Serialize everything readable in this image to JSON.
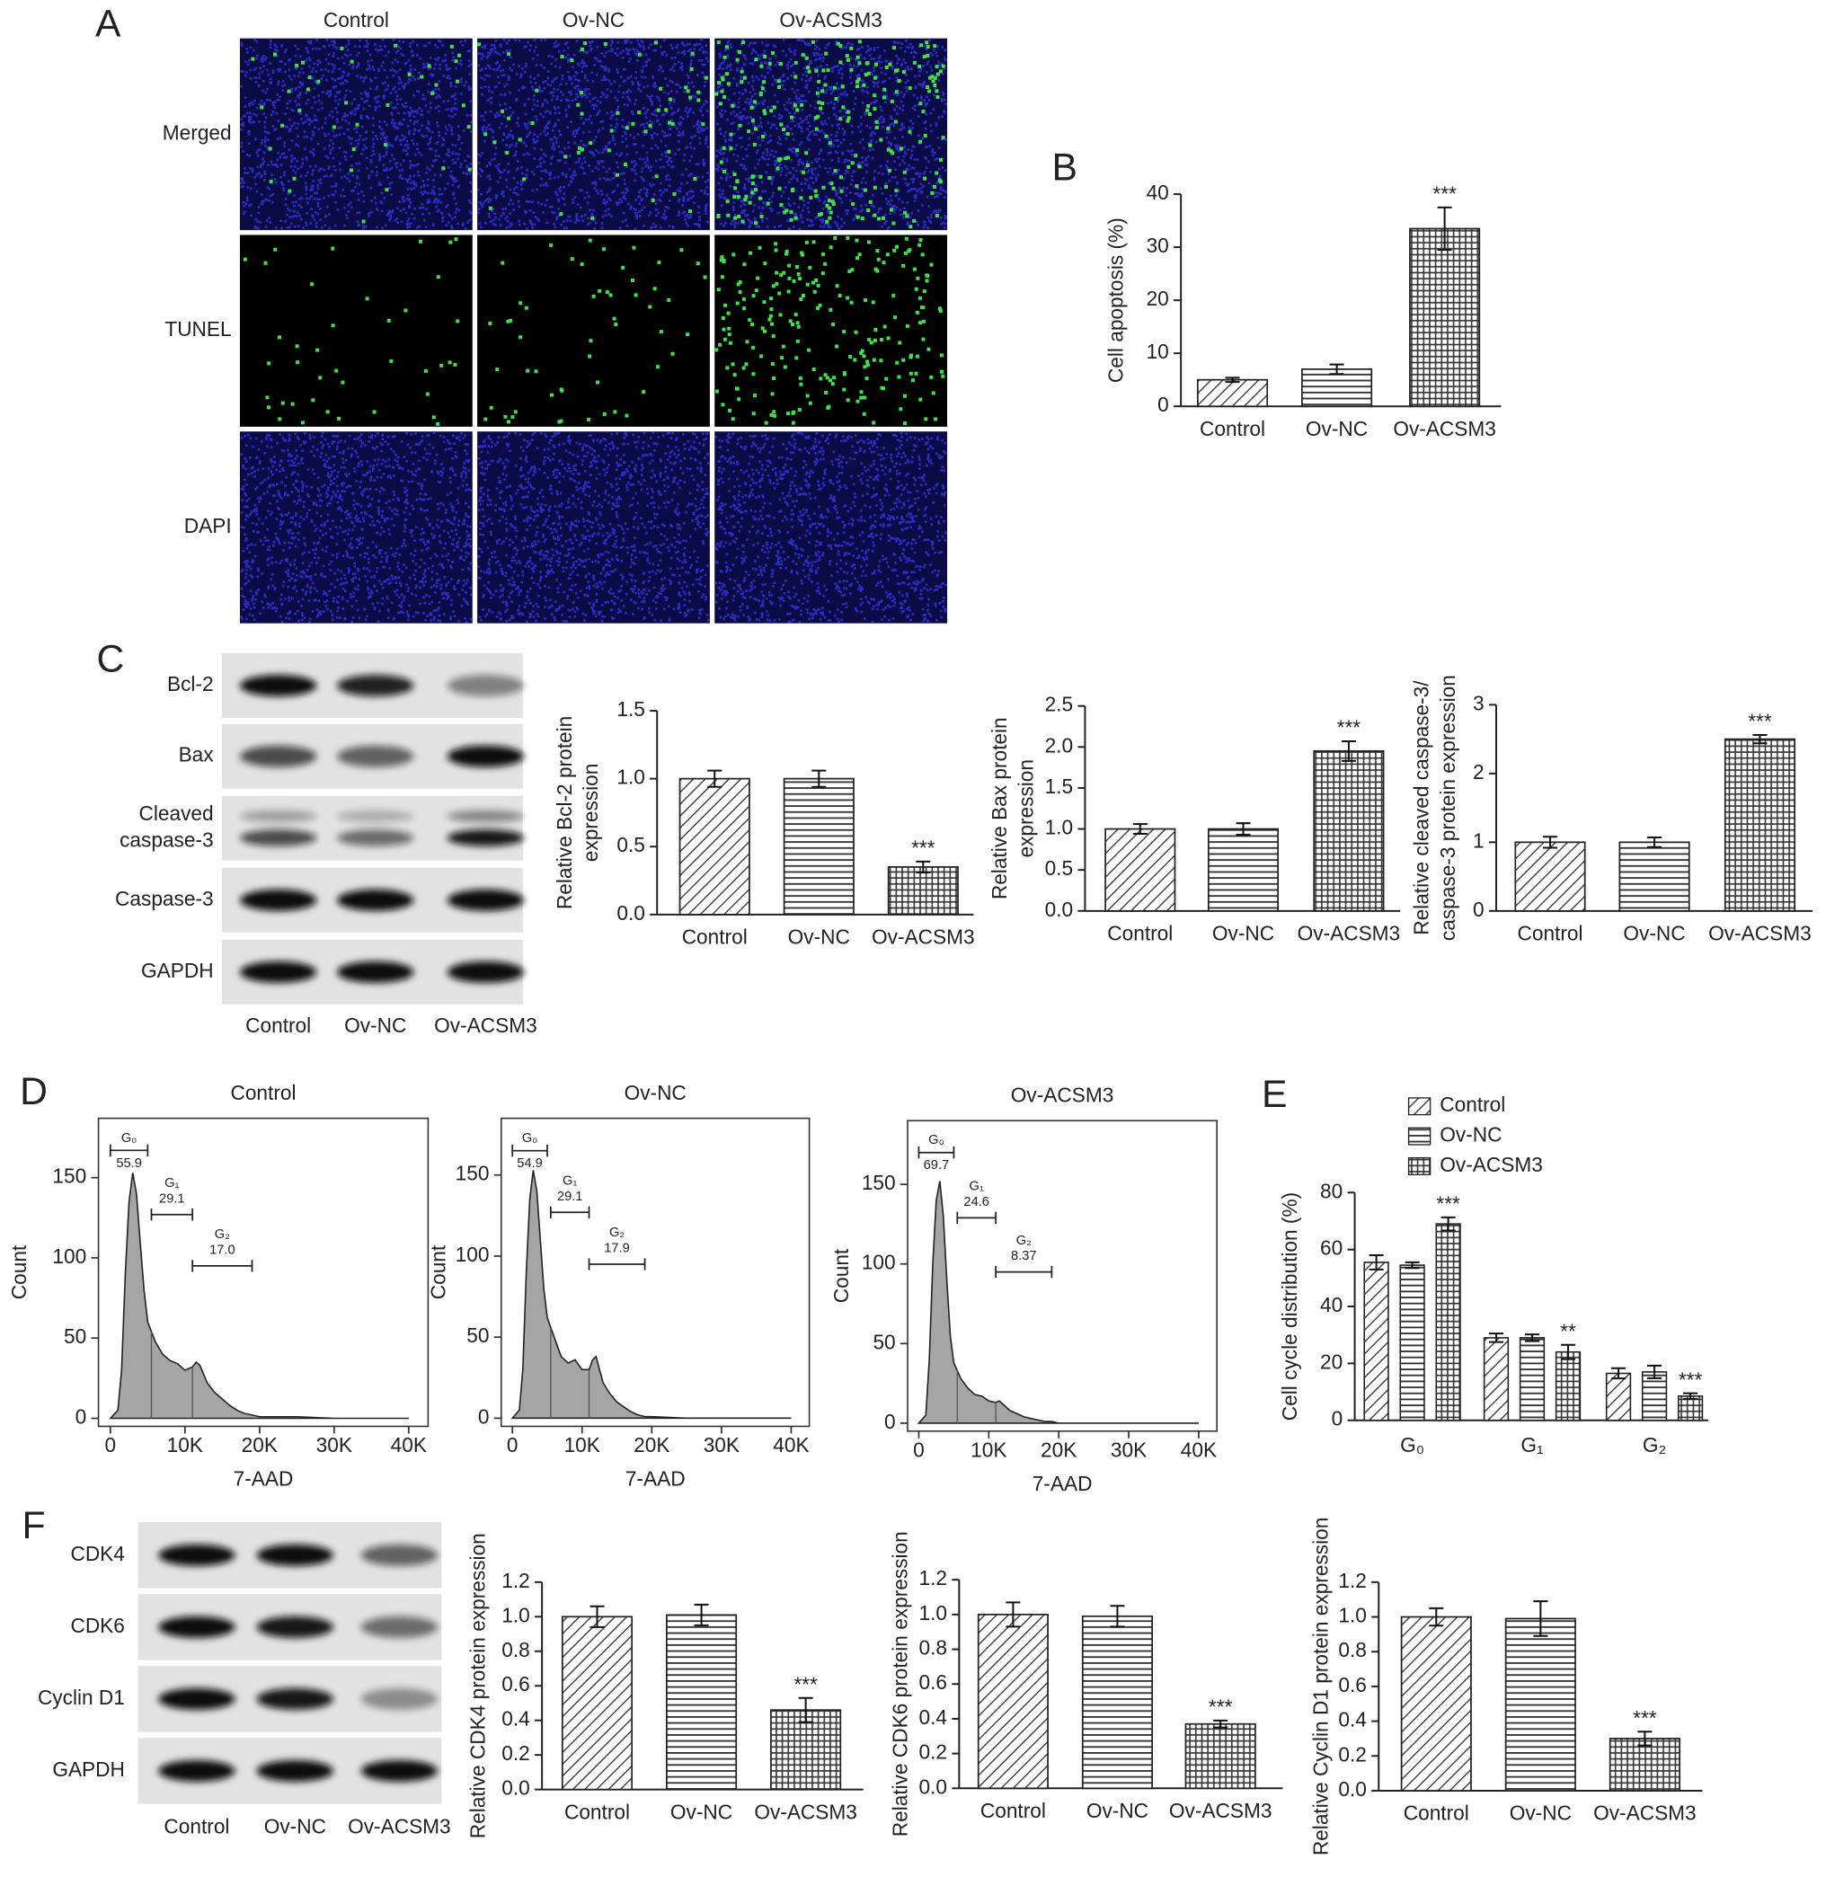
{
  "microscopy": {
    "panel": "A",
    "columns": [
      "Control",
      "Ov-NC",
      "Ov-ACSM3"
    ],
    "rows": [
      "Merged",
      "TUNEL",
      "DAPI"
    ]
  },
  "blots": [
    {
      "panel": "C",
      "bands": [
        "Bcl-2",
        "Bax",
        [
          "Cleaved",
          "caspase-3"
        ],
        "Caspase-3",
        "GAPDH"
      ],
      "lanes": [
        "Control",
        "Ov-NC",
        "Ov-ACSM3"
      ]
    },
    {
      "panel": "F",
      "bands": [
        "CDK4",
        "CDK6",
        "Cyclin D1",
        "GAPDH"
      ],
      "lanes": [
        "Control",
        "Ov-NC",
        "Ov-ACSM3"
      ]
    }
  ],
  "chart_data": [
    {
      "type": "bar",
      "panel": "B",
      "ylabel": [
        "Cell apoptosis (%)"
      ],
      "categories": [
        "Control",
        "Ov-NC",
        "Ov-ACSM3"
      ],
      "values": [
        5,
        7,
        33.5
      ],
      "errors": [
        0.4,
        0.9,
        4
      ],
      "significance": [
        null,
        null,
        "***"
      ],
      "patterns": [
        "diagonal",
        "horizontal",
        "grid"
      ],
      "ylim": [
        0,
        40
      ],
      "yticks": [
        0,
        10,
        20,
        30,
        40
      ]
    },
    {
      "type": "bar",
      "ylabel": [
        "Relative Bcl-2 protein",
        "expression"
      ],
      "categories": [
        "Control",
        "Ov-NC",
        "Ov-ACSM3"
      ],
      "values": [
        1.0,
        1.0,
        0.35
      ],
      "errors": [
        0.06,
        0.06,
        0.04
      ],
      "significance": [
        null,
        null,
        "***"
      ],
      "patterns": [
        "diagonal",
        "horizontal",
        "grid"
      ],
      "ylim": [
        0,
        1.5
      ],
      "yticks": [
        {
          "value": 0,
          "label": "0.0"
        },
        0.5,
        {
          "value": 1,
          "label": "1.0"
        },
        1.5
      ]
    },
    {
      "type": "bar",
      "ylabel": [
        "Relative Bax protein",
        "expression"
      ],
      "categories": [
        "Control",
        "Ov-NC",
        "Ov-ACSM3"
      ],
      "values": [
        1.0,
        1.0,
        1.95
      ],
      "errors": [
        0.06,
        0.07,
        0.12
      ],
      "significance": [
        null,
        null,
        "***"
      ],
      "patterns": [
        "diagonal",
        "horizontal",
        "grid"
      ],
      "ylim": [
        0,
        2.5
      ],
      "yticks": [
        {
          "value": 0,
          "label": "0.0"
        },
        0.5,
        {
          "value": 1,
          "label": "1.0"
        },
        1.5,
        {
          "value": 2,
          "label": "2.0"
        },
        2.5
      ]
    },
    {
      "type": "bar",
      "ylabel": [
        "Relative cleaved caspase-3/",
        "caspase-3 protein expression"
      ],
      "categories": [
        "Control",
        "Ov-NC",
        "Ov-ACSM3"
      ],
      "values": [
        1.0,
        1.0,
        2.5
      ],
      "errors": [
        0.08,
        0.07,
        0.06
      ],
      "significance": [
        null,
        null,
        "***"
      ],
      "patterns": [
        "diagonal",
        "horizontal",
        "grid"
      ],
      "ylim": [
        0,
        3
      ],
      "yticks": [
        0,
        1,
        2,
        3
      ]
    },
    {
      "type": "area",
      "panel": "D",
      "title": "Control",
      "xlabel": "7-AAD",
      "ylabel": [
        "Count"
      ],
      "x": [
        0,
        1000,
        1500,
        2000,
        2500,
        3000,
        3500,
        4000,
        4500,
        5000,
        6000,
        7000,
        8000,
        9000,
        10000,
        11000,
        11500,
        12000,
        13000,
        14000,
        15000,
        16000,
        17000,
        18000,
        19000,
        20000,
        25000,
        30000,
        40000
      ],
      "values": [
        0,
        5,
        30,
        90,
        135,
        153,
        140,
        110,
        80,
        60,
        48,
        40,
        36,
        34,
        30,
        32,
        35,
        33,
        22,
        16,
        12,
        8,
        5,
        3,
        2,
        1,
        1,
        0,
        0
      ],
      "xlim": [
        -1600,
        42600
      ],
      "xticks": [
        0,
        {
          "value": 10000,
          "label": "10K"
        },
        {
          "value": 20000,
          "label": "20K"
        },
        {
          "value": 30000,
          "label": "30K"
        },
        {
          "value": 40000,
          "label": "40K"
        }
      ],
      "ylim": [
        -5,
        187
      ],
      "yticks": [
        0,
        50,
        100,
        150
      ],
      "gates": [
        {
          "name": "G₀",
          "value": 55.9,
          "range": [
            0,
            5000
          ],
          "level": 167
        },
        {
          "name": "G₁",
          "value": 29.1,
          "range": [
            5500,
            11000
          ],
          "level": 127
        },
        {
          "name": "G₂",
          "value": 17,
          "value_label": "17.0",
          "range": [
            11000,
            19000
          ],
          "level": 95
        }
      ]
    },
    {
      "type": "area",
      "title": "Ov-NC",
      "xlabel": "7-AAD",
      "ylabel": [
        "Count"
      ],
      "x": [
        0,
        1000,
        1500,
        2000,
        2500,
        3000,
        3500,
        4000,
        4500,
        5000,
        6000,
        7000,
        8000,
        9000,
        10000,
        11000,
        11500,
        12000,
        13000,
        14000,
        15000,
        16000,
        17000,
        18000,
        19000,
        20000,
        25000,
        30000,
        40000
      ],
      "values": [
        0,
        5,
        30,
        90,
        135,
        153,
        140,
        110,
        80,
        62,
        50,
        38,
        34,
        36,
        30,
        30,
        36,
        38,
        22,
        15,
        10,
        7,
        4,
        2,
        1,
        1,
        0,
        0,
        0
      ],
      "xlim": [
        -1600,
        42600
      ],
      "xticks": [
        0,
        {
          "value": 10000,
          "label": "10K"
        },
        {
          "value": 20000,
          "label": "20K"
        },
        {
          "value": 30000,
          "label": "30K"
        },
        {
          "value": 40000,
          "label": "40K"
        }
      ],
      "ylim": [
        -5,
        185
      ],
      "yticks": [
        0,
        50,
        100,
        150
      ],
      "gates": [
        {
          "name": "G₀",
          "value": 54.9,
          "range": [
            0,
            5000
          ],
          "level": 165
        },
        {
          "name": "G₁",
          "value": 29.1,
          "range": [
            5500,
            11000
          ],
          "level": 127
        },
        {
          "name": "G₂",
          "value": 17.9,
          "range": [
            11000,
            19000
          ],
          "level": 95
        }
      ]
    },
    {
      "type": "area",
      "title": "Ov-ACSM3",
      "xlabel": "7-AAD",
      "ylabel": [
        "Count"
      ],
      "x": [
        0,
        1000,
        1500,
        2000,
        2500,
        3000,
        3500,
        4000,
        4500,
        5000,
        6000,
        7000,
        8000,
        9000,
        10000,
        11000,
        11500,
        12000,
        13000,
        14000,
        15000,
        16000,
        17000,
        18000,
        19000,
        20000,
        25000,
        30000,
        40000
      ],
      "values": [
        0,
        5,
        40,
        100,
        140,
        152,
        130,
        90,
        55,
        38,
        28,
        22,
        18,
        17,
        14,
        13,
        14,
        12,
        8,
        6,
        4,
        3,
        2,
        1,
        1,
        0,
        0,
        0,
        0
      ],
      "xlim": [
        -1600,
        42600
      ],
      "xticks": [
        0,
        {
          "value": 10000,
          "label": "10K"
        },
        {
          "value": 20000,
          "label": "20K"
        },
        {
          "value": 30000,
          "label": "30K"
        },
        {
          "value": 40000,
          "label": "40K"
        }
      ],
      "ylim": [
        -5,
        190
      ],
      "yticks": [
        0,
        50,
        100,
        150
      ],
      "gates": [
        {
          "name": "G₀",
          "value": 69.7,
          "range": [
            0,
            5000
          ],
          "level": 170
        },
        {
          "name": "G₁",
          "value": 24.6,
          "range": [
            5500,
            11000
          ],
          "level": 129
        },
        {
          "name": "G₂",
          "value": 8.37,
          "range": [
            11000,
            19000
          ],
          "level": 95
        }
      ]
    },
    {
      "type": "grouped_bar",
      "panel": "E",
      "ylabel": [
        "Cell cycle distribution (%)"
      ],
      "categories": [
        "G₀",
        "G₁",
        "G₂"
      ],
      "legend": "top-left",
      "series": [
        {
          "name": "Control",
          "pattern": "diagonal",
          "values": [
            55.5,
            29,
            16.5
          ],
          "errors": [
            2.5,
            1.5,
            1.8
          ]
        },
        {
          "name": "Ov-NC",
          "pattern": "horizontal",
          "values": [
            54.5,
            29,
            17
          ],
          "errors": [
            1,
            1.2,
            2.2
          ]
        },
        {
          "name": "Ov-ACSM3",
          "pattern": "grid",
          "values": [
            69,
            24,
            8.5
          ],
          "errors": [
            2.3,
            2.5,
            1
          ],
          "significance": [
            "***",
            "**",
            "***"
          ]
        }
      ],
      "ylim": [
        0,
        80
      ],
      "yticks": [
        0,
        20,
        40,
        60,
        80
      ]
    },
    {
      "type": "bar",
      "ylabel": [
        "Relative CDK4 protein expression"
      ],
      "categories": [
        "Control",
        "Ov-NC",
        "Ov-ACSM3"
      ],
      "values": [
        1.0,
        1.01,
        0.46
      ],
      "errors": [
        0.06,
        0.06,
        0.07
      ],
      "significance": [
        null,
        null,
        "***"
      ],
      "patterns": [
        "diagonal",
        "horizontal",
        "grid"
      ],
      "ylim": [
        0,
        1.2
      ],
      "yticks": [
        {
          "value": 0,
          "label": "0.0"
        },
        0.2,
        0.4,
        0.6,
        0.8,
        {
          "value": 1,
          "label": "1.0"
        },
        1.2
      ]
    },
    {
      "type": "bar",
      "ylabel": [
        "Relative CDK6 protein expression"
      ],
      "categories": [
        "Control",
        "Ov-NC",
        "Ov-ACSM3"
      ],
      "values": [
        1.0,
        0.99,
        0.37
      ],
      "errors": [
        0.07,
        0.06,
        0.02
      ],
      "significance": [
        null,
        null,
        "***"
      ],
      "patterns": [
        "diagonal",
        "horizontal",
        "grid"
      ],
      "ylim": [
        0,
        1.2
      ],
      "yticks": [
        {
          "value": 0,
          "label": "0.0"
        },
        0.2,
        0.4,
        0.6,
        0.8,
        {
          "value": 1,
          "label": "1.0"
        },
        1.2
      ]
    },
    {
      "type": "bar",
      "ylabel": [
        "Relative Cyclin D1 protein expression"
      ],
      "categories": [
        "Control",
        "Ov-NC",
        "Ov-ACSM3"
      ],
      "values": [
        1.0,
        0.99,
        0.3
      ],
      "errors": [
        0.05,
        0.1,
        0.04
      ],
      "significance": [
        null,
        null,
        "***"
      ],
      "patterns": [
        "diagonal",
        "horizontal",
        "grid"
      ],
      "ylim": [
        0,
        1.2
      ],
      "yticks": [
        {
          "value": 0,
          "label": "0.0"
        },
        0.2,
        0.4,
        0.6,
        0.8,
        {
          "value": 1,
          "label": "1.0"
        },
        1.2
      ]
    }
  ]
}
